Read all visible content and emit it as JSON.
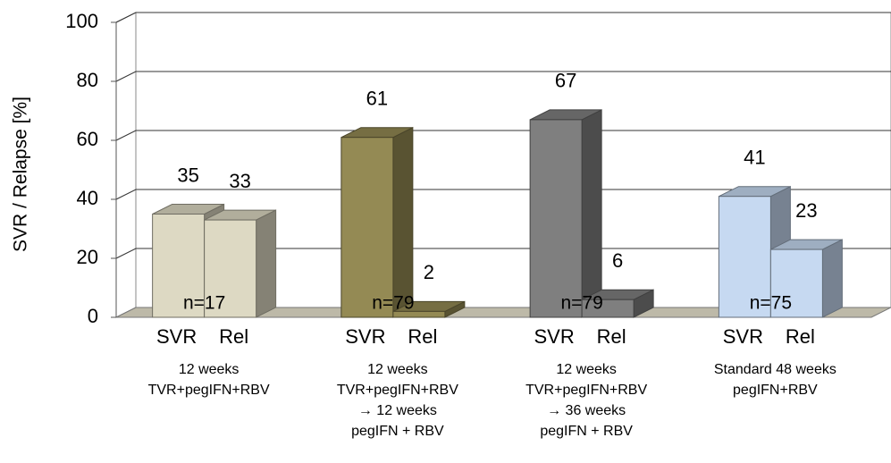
{
  "chart_data": {
    "type": "bar3d",
    "ylabel": "SVR / Relapse [%]",
    "ylim": [
      0,
      100
    ],
    "yticks": [
      0,
      20,
      40,
      60,
      80,
      100
    ],
    "grid": true,
    "categories": [
      [
        "12 weeks",
        "TVR+pegIFN+RBV"
      ],
      [
        "12 weeks",
        "TVR+pegIFN+RBV",
        "→ 12 weeks",
        "pegIFN + RBV"
      ],
      [
        "12 weeks",
        "TVR+pegIFN+RBV",
        "→ 36 weeks",
        "pegIFN + RBV"
      ],
      [
        "Standard 48 weeks",
        "pegIFN+RBV"
      ]
    ],
    "n_labels": [
      "n=17",
      "n=79",
      "n=79",
      "n=75"
    ],
    "group_colors": [
      "#ddd9c3",
      "#948a54",
      "#7f7f7f",
      "#c6d9f1"
    ],
    "series": [
      {
        "name": "SVR",
        "values": [
          35,
          61,
          67,
          41
        ]
      },
      {
        "name": "Rel",
        "values": [
          33,
          2,
          6,
          23
        ]
      }
    ]
  }
}
